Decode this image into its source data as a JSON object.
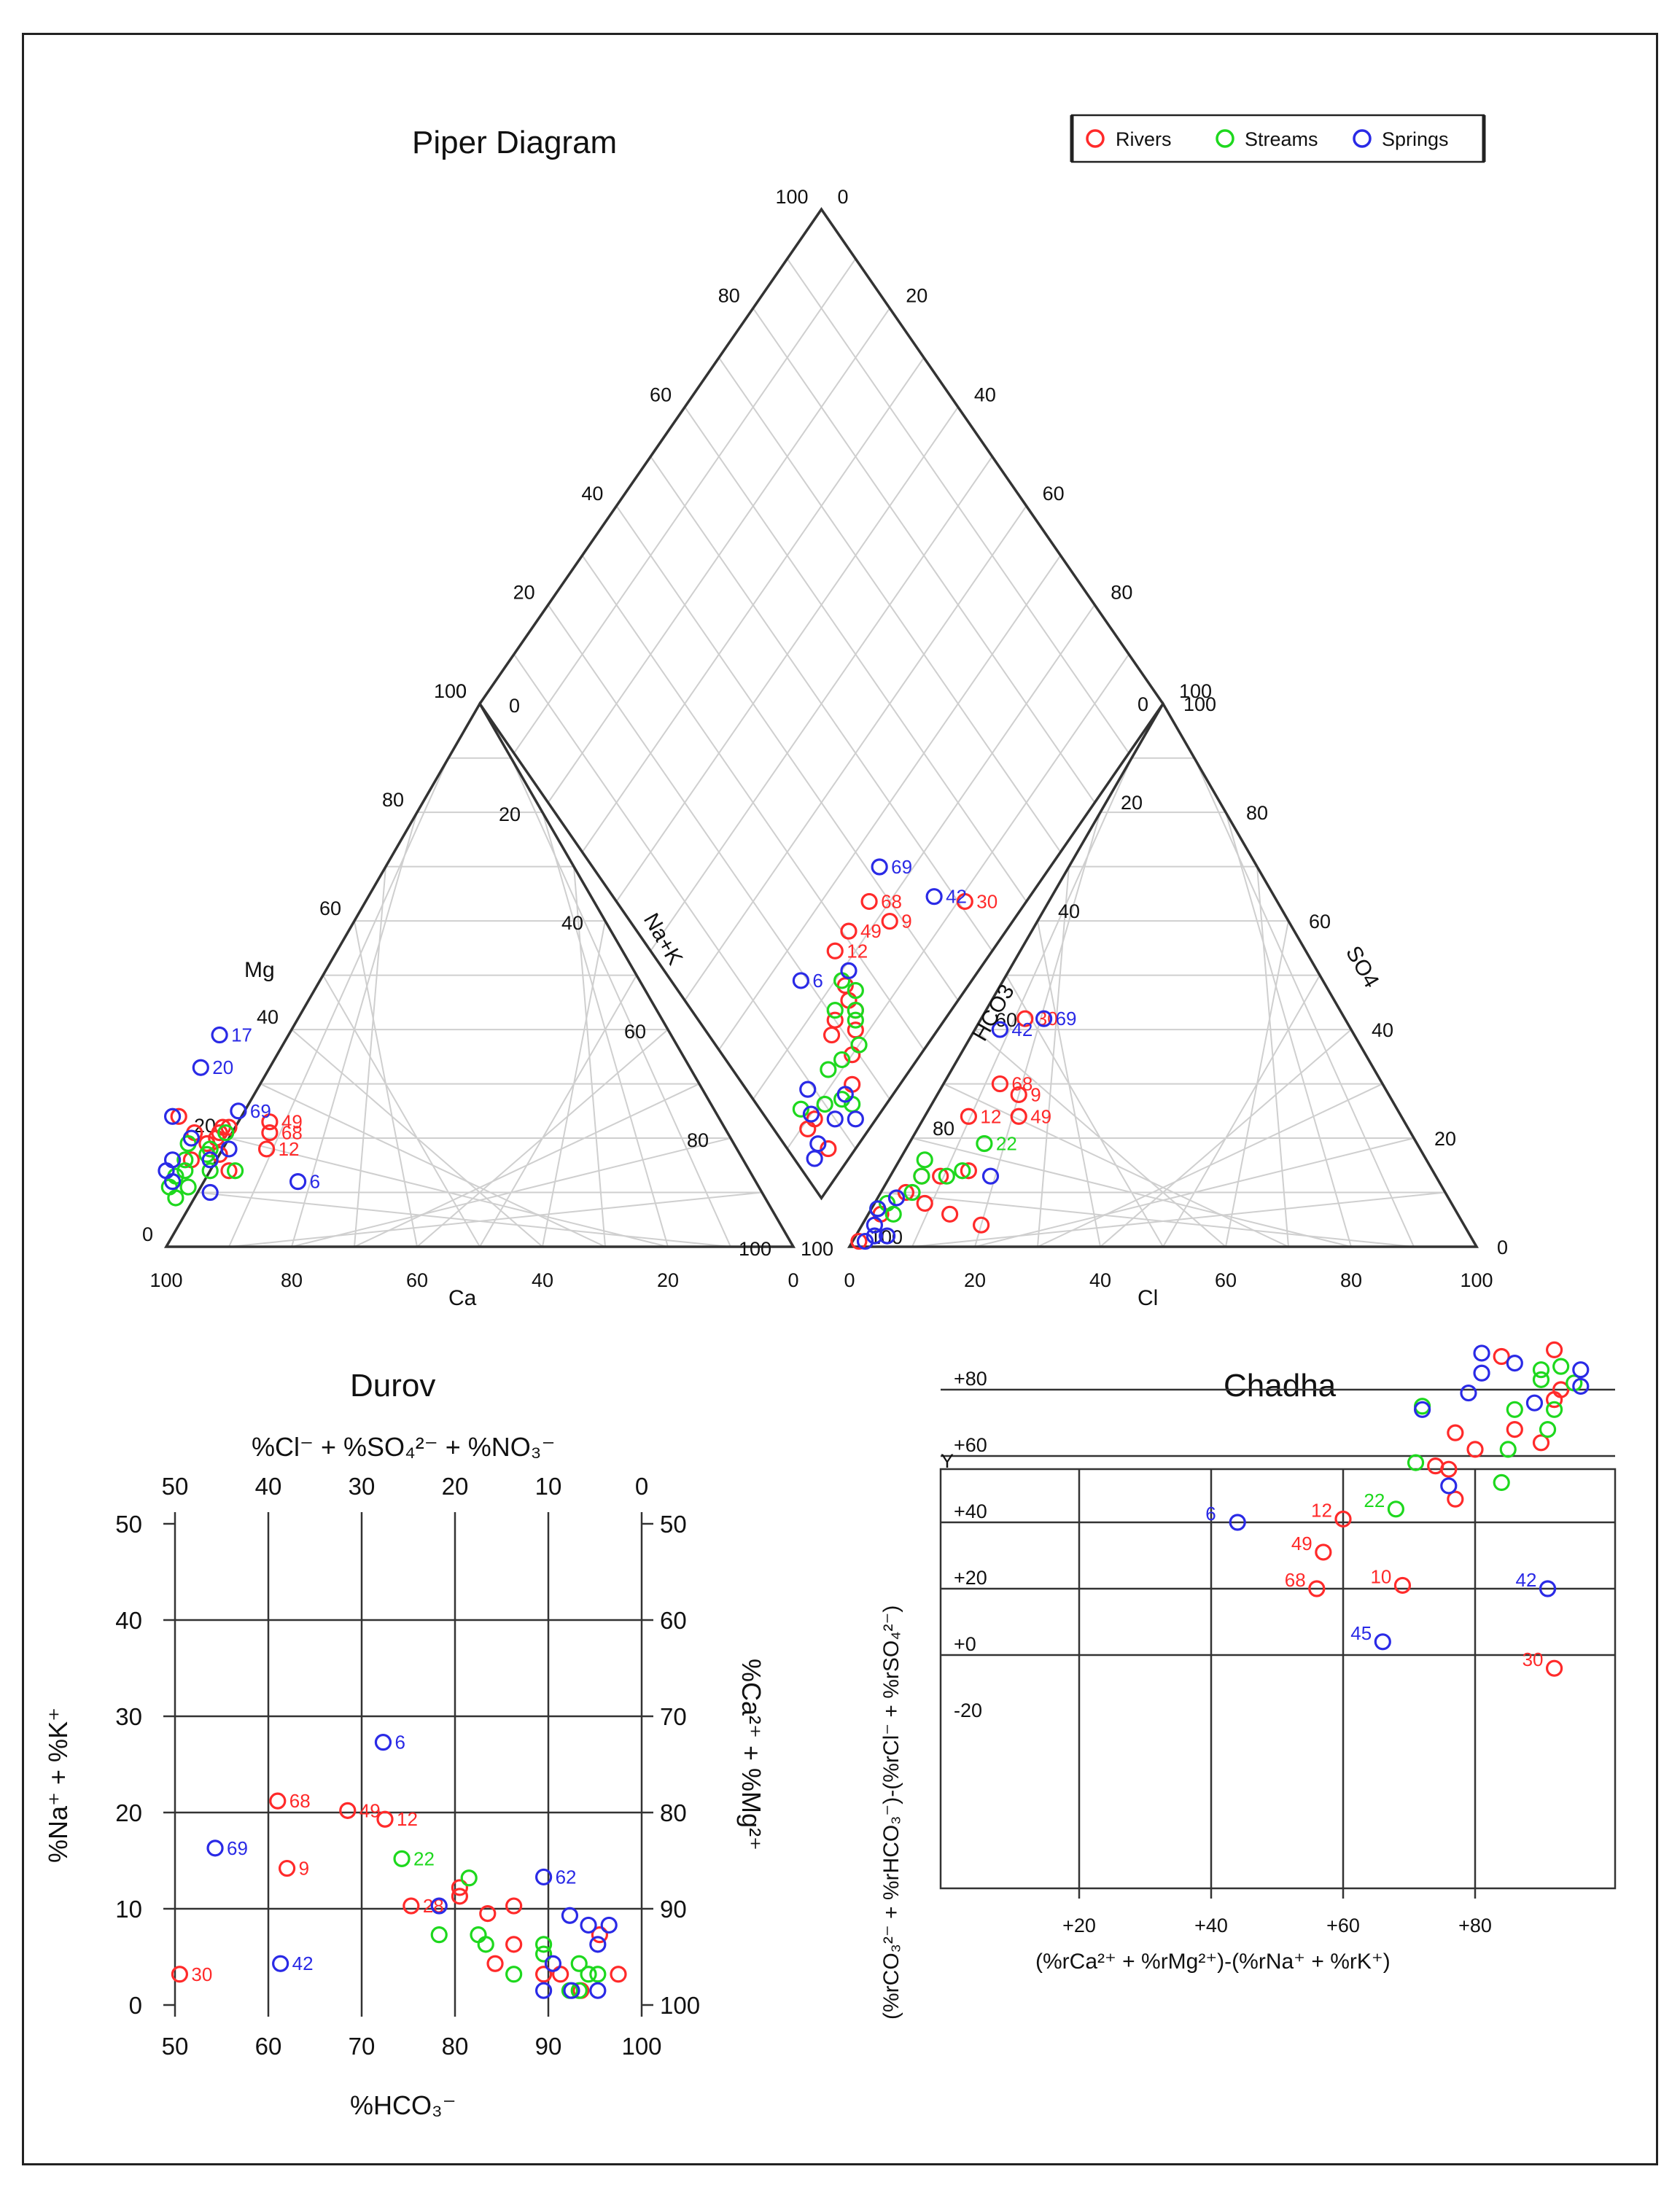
{
  "titles": {
    "piper": "Piper Diagram",
    "durov": "Durov",
    "chadha": "Chadha"
  },
  "legend": [
    {
      "label": "Rivers",
      "color": "#ff2a2a"
    },
    {
      "label": "Streams",
      "color": "#1ed81e"
    },
    {
      "label": "Springs",
      "color": "#2a2ae6"
    }
  ],
  "piper_labels": {
    "mg": "Mg",
    "ca": "Ca",
    "na_k": "Na+K",
    "hco3": "HCO3",
    "cl": "Cl",
    "so4": "SO4",
    "ticks": [
      "0",
      "20",
      "40",
      "60",
      "80",
      "100"
    ]
  },
  "durov_labels": {
    "top_axis": "%Cl⁻ + %SO₄²⁻ + %NO₃⁻",
    "bottom_axis": "%HCO₃⁻",
    "left_axis": "%Na⁺ + %K⁺",
    "right_axis": "%Ca²⁺ + %Mg²⁺",
    "top_ticks": [
      "50",
      "40",
      "30",
      "20",
      "10",
      "0"
    ],
    "bottom_ticks": [
      "50",
      "60",
      "70",
      "80",
      "90",
      "100"
    ],
    "left_ticks": [
      "0",
      "10",
      "20",
      "30",
      "40",
      "50"
    ],
    "right_ticks": [
      "100",
      "90",
      "80",
      "70",
      "60",
      "50"
    ]
  },
  "chadha_labels": {
    "x_axis": "(%rCa²⁺ + %rMg²⁺)-(%rNa⁺ + %rK⁺)",
    "y_axis": "(%rCO₃²⁻ + %rHCO₃⁻)-(%rCl⁻ + %rSO₄²⁻)",
    "y_marker": "Y",
    "x_ticks": [
      "+20",
      "+40",
      "+60",
      "+80"
    ],
    "y_ticks": [
      "+80",
      "+60",
      "+40",
      "+20",
      "+0",
      "-20"
    ]
  },
  "chart_data": [
    {
      "type": "scatter",
      "panel": "piper_cation_triangle",
      "axes": {
        "x": "Ca (%)",
        "y": "Mg (%)",
        "range": [
          0,
          100
        ]
      },
      "series": [
        {
          "name": "Rivers",
          "points": [
            {
              "ca": 72,
              "mg": 23,
              "label": "49"
            },
            {
              "ca": 73,
              "mg": 21,
              "label": "68"
            },
            {
              "ca": 75,
              "mg": 18,
              "label": "12"
            },
            {
              "ca": 86,
              "mg": 24
            },
            {
              "ca": 85,
              "mg": 21
            },
            {
              "ca": 84,
              "mg": 19
            },
            {
              "ca": 83,
              "mg": 17
            },
            {
              "ca": 82,
              "mg": 20
            },
            {
              "ca": 81,
              "mg": 21
            },
            {
              "ca": 80,
              "mg": 22
            },
            {
              "ca": 79,
              "mg": 22
            },
            {
              "ca": 83,
              "mg": 14
            },
            {
              "ca": 88,
              "mg": 16
            }
          ]
        },
        {
          "name": "Streams",
          "points": [
            {
              "ca": 94,
              "mg": 11
            },
            {
              "ca": 94,
              "mg": 9
            },
            {
              "ca": 92,
              "mg": 13
            },
            {
              "ca": 91,
              "mg": 11
            },
            {
              "ca": 90,
              "mg": 14
            },
            {
              "ca": 89,
              "mg": 16
            },
            {
              "ca": 87,
              "mg": 19
            },
            {
              "ca": 85,
              "mg": 17
            },
            {
              "ca": 86,
              "mg": 14
            },
            {
              "ca": 82,
              "mg": 14
            },
            {
              "ca": 80,
              "mg": 21
            },
            {
              "ca": 84,
              "mg": 18
            }
          ]
        },
        {
          "name": "Springs",
          "points": [
            {
              "ca": 72,
              "mg": 39,
              "label": "17"
            },
            {
              "ca": 78,
              "mg": 33,
              "label": "20"
            },
            {
              "ca": 76,
              "mg": 25,
              "label": "69"
            },
            {
              "ca": 73,
              "mg": 12,
              "label": "6"
            },
            {
              "ca": 93,
              "mg": 12
            },
            {
              "ca": 91,
              "mg": 16
            },
            {
              "ca": 87,
              "mg": 24
            },
            {
              "ca": 85,
              "mg": 16
            },
            {
              "ca": 86,
              "mg": 20
            },
            {
              "ca": 81,
              "mg": 18
            },
            {
              "ca": 88,
              "mg": 10
            },
            {
              "ca": 93,
              "mg": 14
            }
          ]
        }
      ]
    },
    {
      "type": "scatter",
      "panel": "piper_anion_triangle",
      "axes": {
        "x": "Cl (%)",
        "y": "SO4 (%)",
        "range": [
          0,
          100
        ]
      },
      "series": [
        {
          "name": "Rivers",
          "points": [
            {
              "cl": 7,
              "so4": 42,
              "label": "30"
            },
            {
              "cl": 9,
              "so4": 30,
              "label": "68"
            },
            {
              "cl": 13,
              "so4": 28,
              "label": "9"
            },
            {
              "cl": 7,
              "so4": 24,
              "label": "12"
            },
            {
              "cl": 15,
              "so4": 24,
              "label": "49"
            },
            {
              "cl": 5,
              "so4": 13
            },
            {
              "cl": 8,
              "so4": 13
            },
            {
              "cl": 12,
              "so4": 14
            },
            {
              "cl": 4,
              "so4": 10
            },
            {
              "cl": 8,
              "so4": 8
            },
            {
              "cl": 13,
              "so4": 6
            },
            {
              "cl": 19,
              "so4": 4
            },
            {
              "cl": 1,
              "so4": 1
            },
            {
              "cl": 2,
              "so4": 6
            }
          ]
        },
        {
          "name": "Streams",
          "points": [
            {
              "cl": 12,
              "so4": 19,
              "label": "22"
            },
            {
              "cl": 4,
              "so4": 16
            },
            {
              "cl": 5,
              "so4": 13
            },
            {
              "cl": 9,
              "so4": 13
            },
            {
              "cl": 11,
              "so4": 14
            },
            {
              "cl": 5,
              "so4": 10
            },
            {
              "cl": 2,
              "so4": 8
            },
            {
              "cl": 1,
              "so4": 7
            },
            {
              "cl": 4,
              "so4": 6
            }
          ]
        },
        {
          "name": "Springs",
          "points": [
            {
              "cl": 4,
              "so4": 40,
              "label": "42"
            },
            {
              "cl": 10,
              "so4": 42,
              "label": "69"
            },
            {
              "cl": 16,
              "so4": 13
            },
            {
              "cl": 3,
              "so4": 9
            },
            {
              "cl": 1,
              "so4": 7
            },
            {
              "cl": 2,
              "so4": 4
            },
            {
              "cl": 3,
              "so4": 2
            },
            {
              "cl": 5,
              "so4": 2
            },
            {
              "cl": 2,
              "so4": 1
            }
          ]
        }
      ]
    },
    {
      "type": "scatter",
      "panel": "piper_diamond",
      "axes": {
        "x": "%Na+K",
        "y": "%SO4+Cl",
        "range": [
          0,
          100
        ]
      },
      "series": [
        {
          "name": "Rivers",
          "points": [
            {
              "nak": 9,
              "so4cl": 51,
              "label": "30"
            },
            {
              "nak": 18,
              "so4cl": 38,
              "label": "9"
            },
            {
              "nak": 23,
              "so4cl": 37,
              "label": "68"
            },
            {
              "nak": 23,
              "so4cl": 31,
              "label": "49"
            },
            {
              "nak": 23,
              "so4cl": 27,
              "label": "12"
            },
            {
              "nak": 14,
              "so4cl": 24
            },
            {
              "nak": 12,
              "so4cl": 22
            },
            {
              "nak": 16,
              "so4cl": 24
            },
            {
              "nak": 18,
              "so4cl": 25
            },
            {
              "nak": 10,
              "so4cl": 19
            },
            {
              "nak": 16,
              "so4cl": 20
            },
            {
              "nak": 4,
              "so4cl": 6
            },
            {
              "nak": 7,
              "so4cl": 16
            },
            {
              "nak": 15,
              "so4cl": 18
            },
            {
              "nak": 9,
              "so4cl": 5
            },
            {
              "nak": 9,
              "so4cl": 7
            }
          ]
        },
        {
          "name": "Streams",
          "points": [
            {
              "nak": 11,
              "so4cl": 17
            },
            {
              "nak": 13,
              "so4cl": 23
            },
            {
              "nak": 14,
              "so4cl": 24
            },
            {
              "nak": 16,
              "so4cl": 26
            },
            {
              "nak": 17,
              "so4cl": 21
            },
            {
              "nak": 12,
              "so4cl": 14
            },
            {
              "nak": 5,
              "so4cl": 14
            },
            {
              "nak": 7,
              "so4cl": 13
            },
            {
              "nak": 10,
              "so4cl": 21
            },
            {
              "nak": 19,
              "so4cl": 25
            },
            {
              "nak": 9,
              "so4cl": 10
            },
            {
              "nak": 12,
              "so4cl": 6
            }
          ]
        },
        {
          "name": "Springs",
          "points": [
            {
              "nak": 14,
              "so4cl": 47,
              "label": "42"
            },
            {
              "nak": 25,
              "so4cl": 42,
              "label": "69"
            },
            {
              "nak": 25,
              "so4cl": 19,
              "label": "6"
            },
            {
              "nak": 7,
              "so4cl": 14
            },
            {
              "nak": 13,
              "so4cl": 9
            },
            {
              "nak": 6,
              "so4cl": 10
            },
            {
              "nak": 6,
              "so4cl": 5
            },
            {
              "nak": 10,
              "so4cl": 7
            },
            {
              "nak": 19,
              "so4cl": 27
            },
            {
              "nak": 3,
              "so4cl": 13
            },
            {
              "nak": 5,
              "so4cl": 3
            }
          ]
        }
      ]
    },
    {
      "type": "scatter",
      "panel": "durov",
      "title": "Durov",
      "xlabel": "%HCO₃⁻",
      "ylabel": "%Na⁺ + %K⁺",
      "xlim": [
        50,
        100
      ],
      "ylim": [
        0,
        50
      ],
      "secondary_axes": {
        "top": "%Cl⁻ + %SO₄²⁻ + %NO₃⁻",
        "right": "%Ca²⁺ + %Mg²⁺"
      },
      "series": [
        {
          "name": "Rivers",
          "points": [
            {
              "x": 50.5,
              "y": 3.2,
              "label": "30"
            },
            {
              "x": 61,
              "y": 21.2,
              "label": "68"
            },
            {
              "x": 62,
              "y": 14.2,
              "label": "9"
            },
            {
              "x": 68.5,
              "y": 20.2,
              "label": "49"
            },
            {
              "x": 72.5,
              "y": 19.3,
              "label": "12"
            },
            {
              "x": 75.3,
              "y": 10.3,
              "label": "28"
            },
            {
              "x": 80.5,
              "y": 11.3
            },
            {
              "x": 80.5,
              "y": 12.2
            },
            {
              "x": 83.5,
              "y": 9.5
            },
            {
              "x": 84.3,
              "y": 4.3
            },
            {
              "x": 86.3,
              "y": 10.3
            },
            {
              "x": 86.3,
              "y": 6.3
            },
            {
              "x": 89.5,
              "y": 3.2
            },
            {
              "x": 91.3,
              "y": 3.2
            },
            {
              "x": 93.5,
              "y": 1.5
            },
            {
              "x": 95.5,
              "y": 7.3
            },
            {
              "x": 97.5,
              "y": 3.2
            }
          ]
        },
        {
          "name": "Streams",
          "points": [
            {
              "x": 74.3,
              "y": 15.2,
              "label": "22"
            },
            {
              "x": 78.3,
              "y": 7.3
            },
            {
              "x": 81.5,
              "y": 13.2
            },
            {
              "x": 82.5,
              "y": 7.3
            },
            {
              "x": 83.3,
              "y": 6.3
            },
            {
              "x": 86.3,
              "y": 3.2
            },
            {
              "x": 89.5,
              "y": 6.3
            },
            {
              "x": 89.5,
              "y": 5.3
            },
            {
              "x": 92.3,
              "y": 1.5
            },
            {
              "x": 93.3,
              "y": 4.3
            },
            {
              "x": 94.3,
              "y": 3.2
            },
            {
              "x": 95.3,
              "y": 3.2
            },
            {
              "x": 93.3,
              "y": 1.5
            }
          ]
        },
        {
          "name": "Springs",
          "points": [
            {
              "x": 54.3,
              "y": 16.3,
              "label": "69"
            },
            {
              "x": 61.3,
              "y": 4.3,
              "label": "42"
            },
            {
              "x": 72.3,
              "y": 27.3,
              "label": "6"
            },
            {
              "x": 89.5,
              "y": 13.3,
              "label": "62"
            },
            {
              "x": 78.3,
              "y": 10.3
            },
            {
              "x": 90.5,
              "y": 4.3
            },
            {
              "x": 89.5,
              "y": 1.5
            },
            {
              "x": 92.3,
              "y": 9.3
            },
            {
              "x": 94.3,
              "y": 8.3
            },
            {
              "x": 95.3,
              "y": 6.3
            },
            {
              "x": 96.5,
              "y": 8.3
            },
            {
              "x": 92.5,
              "y": 1.5
            },
            {
              "x": 95.3,
              "y": 1.5
            }
          ]
        }
      ]
    },
    {
      "type": "scatter",
      "panel": "chadha",
      "title": "Chadha",
      "xlabel": "(%rCa²⁺ + %rMg²⁺)-(%rNa⁺ + %rK⁺)",
      "ylabel": "(%rCO₃²⁻ + %rHCO₃⁻)-(%rCl⁻ + %rSO₄²⁻)",
      "xlim": [
        0,
        100
      ],
      "ylim": [
        -30,
        100
      ],
      "series": [
        {
          "name": "Rivers",
          "points": [
            {
              "x": 60,
              "y": 41,
              "label": "12"
            },
            {
              "x": 57,
              "y": 31,
              "label": "49"
            },
            {
              "x": 56,
              "y": 20,
              "label": "68"
            },
            {
              "x": 69,
              "y": 21,
              "label": "10"
            },
            {
              "x": 92,
              "y": -4,
              "label": "30"
            },
            {
              "x": 84,
              "y": 90
            },
            {
              "x": 92,
              "y": 92
            },
            {
              "x": 93,
              "y": 80
            },
            {
              "x": 92,
              "y": 77
            },
            {
              "x": 90,
              "y": 64
            },
            {
              "x": 86,
              "y": 68
            },
            {
              "x": 80,
              "y": 62
            },
            {
              "x": 77,
              "y": 67
            },
            {
              "x": 76,
              "y": 56
            },
            {
              "x": 74,
              "y": 57
            },
            {
              "x": 77,
              "y": 47
            }
          ]
        },
        {
          "name": "Streams",
          "points": [
            {
              "x": 68,
              "y": 44,
              "label": "22"
            },
            {
              "x": 72,
              "y": 75
            },
            {
              "x": 71,
              "y": 58
            },
            {
              "x": 84,
              "y": 52
            },
            {
              "x": 85,
              "y": 62
            },
            {
              "x": 86,
              "y": 74
            },
            {
              "x": 90,
              "y": 83
            },
            {
              "x": 90,
              "y": 86
            },
            {
              "x": 93,
              "y": 87
            },
            {
              "x": 92,
              "y": 74
            },
            {
              "x": 91,
              "y": 68
            },
            {
              "x": 95,
              "y": 82
            }
          ]
        },
        {
          "name": "Springs",
          "points": [
            {
              "x": 44,
              "y": 40,
              "label": "6"
            },
            {
              "x": 66,
              "y": 4,
              "label": "45"
            },
            {
              "x": 91,
              "y": 20,
              "label": "42"
            },
            {
              "x": 72,
              "y": 74
            },
            {
              "x": 81,
              "y": 91
            },
            {
              "x": 81,
              "y": 85
            },
            {
              "x": 79,
              "y": 79
            },
            {
              "x": 86,
              "y": 88
            },
            {
              "x": 89,
              "y": 76
            },
            {
              "x": 96,
              "y": 86
            },
            {
              "x": 96,
              "y": 81
            },
            {
              "x": 76,
              "y": 51
            }
          ]
        }
      ]
    }
  ]
}
